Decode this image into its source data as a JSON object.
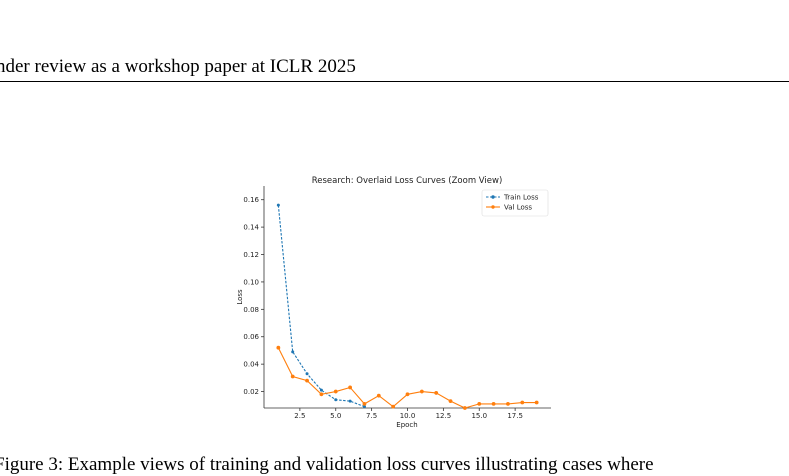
{
  "header": {
    "text": "nder review as a workshop paper at ICLR 2025"
  },
  "caption": {
    "text": "Figure 3: Example views of training and validation loss curves illustrating cases where"
  },
  "chart_data": {
    "type": "line",
    "title": "Research: Overlaid Loss Curves (Zoom View)",
    "xlabel": "Epoch",
    "ylabel": "Loss",
    "xlim": [
      0,
      20
    ],
    "ylim": [
      0.008,
      0.17
    ],
    "xticks": [
      2.5,
      5.0,
      7.5,
      10.0,
      12.5,
      15.0,
      17.5
    ],
    "xtick_labels": [
      "2.5",
      "5.0",
      "7.5",
      "10.0",
      "12.5",
      "15.0",
      "17.5"
    ],
    "yticks": [
      0.02,
      0.04,
      0.06,
      0.08,
      0.1,
      0.12,
      0.14,
      0.16
    ],
    "ytick_labels": [
      "0.02",
      "0.04",
      "0.06",
      "0.08",
      "0.10",
      "0.12",
      "0.14",
      "0.16"
    ],
    "grid": false,
    "legend_position": "top-right",
    "series": [
      {
        "name": "Train Loss",
        "color": "#1f77b4",
        "linestyle": "dashed",
        "marker": "circle",
        "x": [
          1,
          2,
          3,
          4,
          5,
          6,
          7
        ],
        "y": [
          0.156,
          0.049,
          0.033,
          0.021,
          0.014,
          0.013,
          0.009
        ]
      },
      {
        "name": "Val Loss",
        "color": "#ff7f0e",
        "linestyle": "solid",
        "marker": "circle",
        "x": [
          1,
          2,
          3,
          4,
          5,
          6,
          7,
          8,
          9,
          10,
          11,
          12,
          13,
          14,
          15,
          16,
          17,
          18,
          19
        ],
        "y": [
          0.052,
          0.031,
          0.028,
          0.018,
          0.02,
          0.023,
          0.011,
          0.017,
          0.009,
          0.018,
          0.02,
          0.019,
          0.013,
          0.008,
          0.011,
          0.011,
          0.011,
          0.012,
          0.012
        ]
      }
    ]
  }
}
